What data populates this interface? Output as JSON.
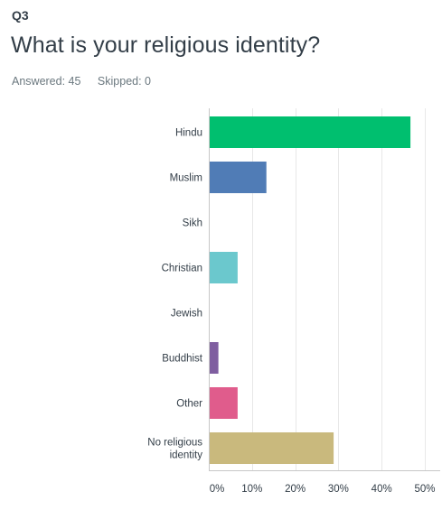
{
  "question": {
    "number": "Q3",
    "title": "What is your religious identity?",
    "answered": "Answered: 45",
    "skipped": "Skipped: 0"
  },
  "chart_data": {
    "type": "bar",
    "orientation": "horizontal",
    "categories": [
      "Hindu",
      "Muslim",
      "Sikh",
      "Christian",
      "Jewish",
      "Buddhist",
      "Other",
      "No religious identity"
    ],
    "category_lines": [
      [
        "Hindu"
      ],
      [
        "Muslim"
      ],
      [
        "Sikh"
      ],
      [
        "Christian"
      ],
      [
        "Jewish"
      ],
      [
        "Buddhist"
      ],
      [
        "Other"
      ],
      [
        "No religious",
        "identity"
      ]
    ],
    "values": [
      46.67,
      13.33,
      0,
      6.67,
      0,
      2.22,
      6.67,
      28.89
    ],
    "colors": [
      "#00bf6f",
      "#507cb6",
      "#f9be00",
      "#6bc8cd",
      "#ff8b4f",
      "#7f5ea0",
      "#e05c8c",
      "#c9b97d"
    ],
    "xlim": [
      0,
      50
    ],
    "xticks": [
      "0%",
      "10%",
      "20%",
      "30%",
      "40%",
      "50%"
    ],
    "grid": true,
    "title": "",
    "xlabel": "",
    "ylabel": ""
  }
}
